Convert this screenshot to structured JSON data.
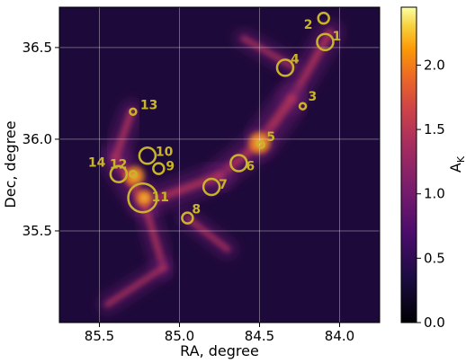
{
  "chart_data": {
    "type": "heatmap",
    "title": "",
    "xlabel": "RA, degree",
    "ylabel": "Dec, degree",
    "xlim": [
      85.75,
      83.75
    ],
    "ylim": [
      35.0,
      36.72
    ],
    "x_ticks": [
      85.5,
      85.0,
      84.5,
      84.0
    ],
    "x_tick_labels": [
      "85.5",
      "85.0",
      "84.5",
      "84.0"
    ],
    "y_ticks": [
      35.5,
      36.0,
      36.5
    ],
    "y_tick_labels": [
      "35.5",
      "36.0",
      "36.5"
    ],
    "grid": true,
    "colormap": "inferno",
    "colorbar": {
      "label_main": "A",
      "label_sub": "K",
      "range": [
        0.0,
        2.45
      ],
      "ticks": [
        0.0,
        0.5,
        1.0,
        1.5,
        2.0
      ],
      "tick_labels": [
        "0.0",
        "0.5",
        "1.0",
        "1.5",
        "2.0"
      ]
    },
    "marker_color": "#c8b42a",
    "sources": [
      {
        "label": "1",
        "ra": 84.09,
        "dec": 36.53,
        "size": "medium"
      },
      {
        "label": "2",
        "ra": 84.1,
        "dec": 36.66,
        "size": "small"
      },
      {
        "label": "3",
        "ra": 84.23,
        "dec": 36.18,
        "size": "tiny"
      },
      {
        "label": "4",
        "ra": 84.34,
        "dec": 36.39,
        "size": "medium"
      },
      {
        "label": "5",
        "ra": 84.49,
        "dec": 35.97,
        "size": "tiny"
      },
      {
        "label": "6",
        "ra": 84.63,
        "dec": 35.87,
        "size": "medium"
      },
      {
        "label": "7",
        "ra": 84.8,
        "dec": 35.74,
        "size": "medium"
      },
      {
        "label": "8",
        "ra": 84.95,
        "dec": 35.57,
        "size": "small"
      },
      {
        "label": "9",
        "ra": 85.13,
        "dec": 35.84,
        "size": "small"
      },
      {
        "label": "10",
        "ra": 85.2,
        "dec": 35.91,
        "size": "medium"
      },
      {
        "label": "11",
        "ra": 85.23,
        "dec": 35.68,
        "size": "large"
      },
      {
        "label": "12",
        "ra": 85.29,
        "dec": 35.81,
        "size": "tiny"
      },
      {
        "label": "13",
        "ra": 85.29,
        "dec": 36.15,
        "size": "tiny"
      },
      {
        "label": "14",
        "ra": 85.38,
        "dec": 35.81,
        "size": "medium"
      }
    ],
    "emission_ridges": [
      {
        "from": [
          84.06,
          36.58
        ],
        "to": [
          84.3,
          36.22
        ],
        "strength": 0.55
      },
      {
        "from": [
          84.3,
          36.22
        ],
        "to": [
          84.5,
          35.98
        ],
        "strength": 0.8
      },
      {
        "from": [
          84.5,
          35.98
        ],
        "to": [
          84.75,
          35.8
        ],
        "strength": 0.65
      },
      {
        "from": [
          84.75,
          35.8
        ],
        "to": [
          85.22,
          35.65
        ],
        "strength": 0.6
      },
      {
        "from": [
          85.22,
          35.65
        ],
        "to": [
          85.4,
          35.9
        ],
        "strength": 0.75
      },
      {
        "from": [
          85.4,
          35.9
        ],
        "to": [
          85.3,
          36.15
        ],
        "strength": 0.45
      },
      {
        "from": [
          85.22,
          35.65
        ],
        "to": [
          85.1,
          35.3
        ],
        "strength": 0.4
      },
      {
        "from": [
          85.1,
          35.3
        ],
        "to": [
          85.45,
          35.1
        ],
        "strength": 0.3
      },
      {
        "from": [
          84.95,
          35.57
        ],
        "to": [
          84.7,
          35.4
        ],
        "strength": 0.3
      },
      {
        "from": [
          84.3,
          36.4
        ],
        "to": [
          84.6,
          36.55
        ],
        "strength": 0.3
      }
    ],
    "emission_peaks": [
      {
        "ra": 84.5,
        "dec": 35.98,
        "strength": 1.0
      },
      {
        "ra": 85.28,
        "dec": 35.8,
        "strength": 0.9
      },
      {
        "ra": 85.22,
        "dec": 35.68,
        "strength": 0.75
      }
    ]
  }
}
